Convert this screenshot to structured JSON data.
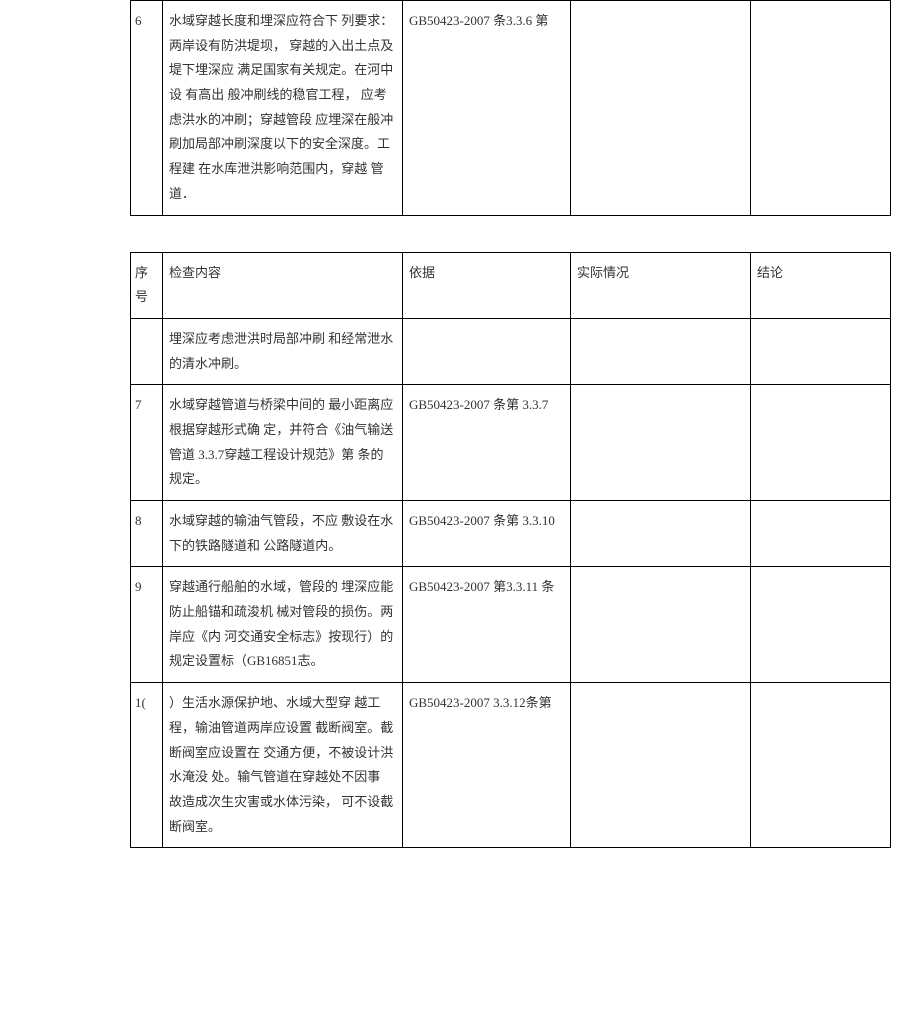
{
  "table1": {
    "rows": [
      {
        "num": "6",
        "content": "水域穿越长度和埋深应符合下 列要求：两岸设有防洪堤坝， 穿越的入出土点及堤下埋深应 满足国家有关规定。在河中设 有高出 般冲刷线的稳官工程， 应考虑洪水的冲刷；穿越管段 应埋深在般冲刷加局部冲刷深度以下的安全深度。工程建 在水库泄洪影响范围内，穿越 管道．",
        "basis": "GB50423-2007         条3.3.6 第",
        "actual": "",
        "conclusion": ""
      }
    ]
  },
  "table2": {
    "headers": {
      "num": "序 号",
      "content": "检查内容",
      "basis": "依据",
      "actual": "实际情况",
      "conclusion": "结论"
    },
    "rows": [
      {
        "num": "",
        "content": "埋深应考虑泄洪时局部冲刷 和经常泄水的清水冲刷。",
        "basis": "",
        "actual": "",
        "conclusion": ""
      },
      {
        "num": "7",
        "content": "水域穿越管道与桥梁中间的 最小距离应根据穿越形式确 定，并符合《油气输送管道 3.3.7穿越工程设计规范》第 条的规定。",
        "basis": "GB50423-2007         条第  3.3.7",
        "actual": "",
        "conclusion": ""
      },
      {
        "num": "8",
        "content": "水域穿越的输油气管段，不应 敷设在水下的铁路隧道和           公路隧道内。",
        "basis": "GB50423-2007         条第  3.3.10",
        "actual": "",
        "conclusion": ""
      },
      {
        "num": "9",
        "content": "穿越通行船舶的水域，管段的 埋深应能防止船锚和疏浚机 械对管段的损伤。两岸应《内 河交通安全标志》按现行）的 规定设置标（GB16851志。",
        "basis": "GB50423-2007         第3.3.11 条",
        "actual": "",
        "conclusion": ""
      },
      {
        "num": "1(",
        "content": "）生活水源保护地、水域大型穿 越工程，输油管道两岸应设置 截断阀室。截断阀室应设置在 交通方便，不被设计洪水淹没 处。输气管道在穿越处不因事 故造成次生灾害或水体污染， 可不设截断阀室。",
        "basis": "GB50423-2007    3.3.12条第",
        "actual": "",
        "conclusion": ""
      }
    ]
  }
}
